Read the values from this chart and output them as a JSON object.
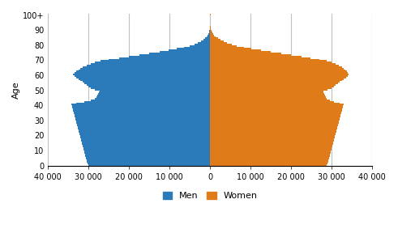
{
  "ages": [
    0,
    1,
    2,
    3,
    4,
    5,
    6,
    7,
    8,
    9,
    10,
    11,
    12,
    13,
    14,
    15,
    16,
    17,
    18,
    19,
    20,
    21,
    22,
    23,
    24,
    25,
    26,
    27,
    28,
    29,
    30,
    31,
    32,
    33,
    34,
    35,
    36,
    37,
    38,
    39,
    40,
    41,
    42,
    43,
    44,
    45,
    46,
    47,
    48,
    49,
    50,
    51,
    52,
    53,
    54,
    55,
    56,
    57,
    58,
    59,
    60,
    61,
    62,
    63,
    64,
    65,
    66,
    67,
    68,
    69,
    70,
    71,
    72,
    73,
    74,
    75,
    76,
    77,
    78,
    79,
    80,
    81,
    82,
    83,
    84,
    85,
    86,
    87,
    88,
    89,
    90,
    91,
    92,
    93,
    94,
    95,
    96,
    97,
    98,
    99,
    100
  ],
  "men": [
    30000,
    30200,
    30400,
    30500,
    30600,
    30700,
    30800,
    30900,
    31000,
    31100,
    31200,
    31300,
    31400,
    31500,
    31600,
    31700,
    31800,
    31900,
    32000,
    32100,
    32200,
    32300,
    32400,
    32500,
    32600,
    32700,
    32800,
    32900,
    33000,
    33100,
    33200,
    33300,
    33400,
    33500,
    33600,
    33700,
    33800,
    33900,
    34000,
    34100,
    34200,
    33000,
    31000,
    29500,
    28500,
    28000,
    27800,
    27600,
    27500,
    27300,
    28500,
    29500,
    30000,
    30500,
    31000,
    31500,
    32000,
    32500,
    33000,
    33500,
    33800,
    33500,
    33000,
    32500,
    32000,
    31500,
    30500,
    29500,
    28500,
    27000,
    25000,
    22500,
    20000,
    17500,
    15000,
    12500,
    10200,
    8200,
    6500,
    5000,
    3900,
    3000,
    2300,
    1700,
    1200,
    900,
    650,
    450,
    300,
    180,
    110,
    70,
    45,
    28,
    16,
    9,
    5,
    3,
    1,
    1,
    50
  ],
  "women": [
    28800,
    29000,
    29100,
    29200,
    29300,
    29400,
    29500,
    29600,
    29700,
    29800,
    29900,
    30000,
    30100,
    30200,
    30300,
    30400,
    30500,
    30600,
    30700,
    30800,
    30900,
    31000,
    31100,
    31200,
    31300,
    31400,
    31500,
    31600,
    31700,
    31800,
    31900,
    32000,
    32100,
    32200,
    32300,
    32400,
    32500,
    32600,
    32700,
    32800,
    32900,
    32000,
    30500,
    29500,
    28800,
    28500,
    28300,
    28100,
    28000,
    27900,
    29000,
    30000,
    30500,
    31000,
    31500,
    32000,
    32500,
    33000,
    33500,
    34000,
    34200,
    34000,
    33700,
    33400,
    33000,
    32500,
    31800,
    31000,
    30000,
    28800,
    27000,
    24800,
    22500,
    20000,
    17500,
    15000,
    12500,
    10200,
    8300,
    6600,
    5300,
    4200,
    3300,
    2500,
    1900,
    1450,
    1050,
    740,
    500,
    320,
    210,
    140,
    90,
    57,
    35,
    20,
    11,
    6,
    3,
    1,
    200
  ],
  "men_color": "#2b7bba",
  "women_color": "#e07b1a",
  "xlim": 40000,
  "yticks": [
    0,
    10,
    20,
    30,
    40,
    50,
    60,
    70,
    80,
    90,
    100
  ],
  "xticks": [
    -40000,
    -30000,
    -20000,
    -10000,
    0,
    10000,
    20000,
    30000,
    40000
  ],
  "xticklabels": [
    "40 000",
    "30 000",
    "20 000",
    "10 000",
    "0",
    "10 000",
    "20 000",
    "30 000",
    "40 000"
  ],
  "ylabel": "Age",
  "men_label": "Men",
  "women_label": "Women",
  "grid_color": "#c0c0c0",
  "bar_height": 1.0
}
